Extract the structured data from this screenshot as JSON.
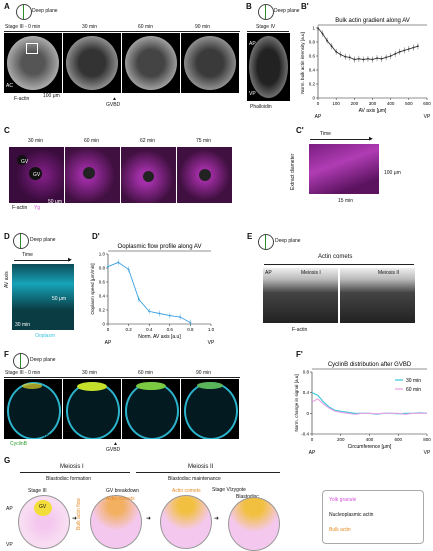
{
  "panels": {
    "A": {
      "label": "A",
      "deep": "Deep plane",
      "header": "Stage III - 0 min",
      "times": [
        "30 min",
        "60 min",
        "90 min"
      ],
      "stain": "F-actin",
      "scale": "100 μm",
      "gvbd": "GVBD",
      "ac": "AC"
    },
    "B": {
      "label": "B",
      "deep": "Deep plane",
      "stage": "Stage IV",
      "ap": "AP",
      "vp": "VP",
      "stain": "Phalloidin"
    },
    "Bp": {
      "label": "B'",
      "title": "Bulk actin gradient along AV",
      "ylabel": "Norm. bulk actin intensity [a.u]",
      "xlabel": "AV axis [μm]",
      "ap": "AP",
      "vp": "VP"
    },
    "C": {
      "label": "C",
      "times": [
        "30 min",
        "60 min",
        "62 min",
        "75 min"
      ],
      "stain1": "F-actin",
      "stain2": "Yg",
      "scale": "50 μm",
      "gv1": "GV",
      "gv2": "GV"
    },
    "Cp": {
      "label": "C'",
      "time": "Time",
      "ylabel": "Extract diameter",
      "scale_y": "100 μm",
      "scale_x": "15 min"
    },
    "D": {
      "label": "D",
      "deep": "Deep plane",
      "time": "Time",
      "axis": "AV axis",
      "stain": "Ooplasm",
      "scale_y": "50 μm",
      "scale_x": "30 min"
    },
    "Dp": {
      "label": "D'",
      "title": "Ooplasmic flow profile along AV",
      "ylabel": "Ooplasm speed [μm/min]",
      "xlabel": "Norm. AV axis [a.u]",
      "ap": "AP",
      "vp": "VP"
    },
    "E": {
      "label": "E",
      "deep": "Deep plane",
      "title": "Actin comets",
      "m1": "Meiosis I",
      "m2": "Meiosis II",
      "ap": "AP",
      "stain": "F-actin"
    },
    "F": {
      "label": "F",
      "deep": "Deep plane",
      "header": "Stage III - 0 min",
      "times": [
        "30 min",
        "60 min",
        "90 min"
      ],
      "stain": "CyclinB",
      "scale": "100 μm",
      "gvbd": "GVBD"
    },
    "Fp": {
      "label": "F'",
      "title": "CyclinB distribution after GVBD",
      "ylabel": "Norm. change in signal [a.u]",
      "xlabel": "Circumference [μm]",
      "ap": "AP",
      "vp": "VP",
      "legend": [
        "30 min",
        "60 min"
      ]
    },
    "G": {
      "label": "G",
      "m1": "Meiosis I",
      "m1sub": "Blastodisc formation",
      "m2": "Meiosis II",
      "m2sub": "Blastodisc maintenance",
      "s1": "Stage III",
      "s2": "GV breakdown",
      "s3": "Stage V/zygote",
      "blast": "Blastodisc",
      "ap": "AP",
      "vp": "VP",
      "gv": "GV",
      "comets1": "Actin comets",
      "comets2": "Actin comets",
      "bulk": "Bulk actin flow",
      "legend": [
        "Yolk granule",
        "Nucleoplasmic actin",
        "Bulk actin"
      ]
    }
  },
  "colors": {
    "cyan": "#39c6dc",
    "magenta": "#d34fd8",
    "orange": "#e58a26",
    "yellow": "#e6d12a",
    "blue_line": "#3aa0e0",
    "pink": "#e7a1e2"
  },
  "chart_data": [
    {
      "type": "line",
      "id": "Bp",
      "title": "Bulk actin gradient along AV",
      "xlabel": "AV axis [μm]",
      "ylabel": "Norm. bulk actin intensity [a.u]",
      "xlim": [
        0,
        600
      ],
      "ylim": [
        0,
        1
      ],
      "xticks": [
        "0",
        "100",
        "200",
        "300",
        "400",
        "500",
        "600"
      ],
      "yticks": [
        "0",
        "0.2",
        "0.4",
        "0.6",
        "0.8",
        "1"
      ],
      "x": [
        0,
        25,
        50,
        75,
        100,
        125,
        150,
        175,
        200,
        225,
        250,
        275,
        300,
        325,
        350,
        375,
        400,
        425,
        450,
        475,
        500,
        525,
        550
      ],
      "values": [
        1.0,
        0.92,
        0.82,
        0.74,
        0.66,
        0.62,
        0.59,
        0.58,
        0.55,
        0.56,
        0.55,
        0.56,
        0.55,
        0.57,
        0.56,
        0.58,
        0.6,
        0.63,
        0.66,
        0.68,
        0.7,
        0.72,
        0.74
      ]
    },
    {
      "type": "line",
      "id": "Dp",
      "title": "Ooplasmic flow profile along AV",
      "xlabel": "Norm. AV axis [a.u]",
      "ylabel": "Ooplasm speed [μm/min]",
      "xlim": [
        0,
        1
      ],
      "ylim": [
        0,
        1.0
      ],
      "xticks": [
        "0",
        "0.2",
        "0.4",
        "0.6",
        "0.8",
        "1.0"
      ],
      "yticks": [
        "0",
        "0.2",
        "0.4",
        "0.6",
        "0.8",
        "1.0"
      ],
      "x": [
        0,
        0.1,
        0.2,
        0.3,
        0.4,
        0.5,
        0.6,
        0.7,
        0.8
      ],
      "values": [
        0.82,
        0.88,
        0.78,
        0.35,
        0.18,
        0.15,
        0.12,
        0.1,
        0.02
      ]
    },
    {
      "type": "line",
      "id": "Fp",
      "title": "CyclinB distribution after GVBD",
      "xlabel": "Circumference [μm]",
      "ylabel": "Norm. change in signal [a.u]",
      "xlim": [
        0,
        800
      ],
      "ylim": [
        -0.4,
        0.8
      ],
      "xticks": [
        "0",
        "200",
        "400",
        "600",
        "800"
      ],
      "yticks": [
        "-0.4",
        "0",
        "0.4",
        "0.8"
      ],
      "series": [
        {
          "name": "30 min",
          "x": [
            0,
            40,
            80,
            120,
            160,
            200,
            250,
            300,
            350,
            400,
            450,
            500,
            550,
            600,
            650,
            700,
            750,
            800
          ],
          "values": [
            0.4,
            0.35,
            0.22,
            0.12,
            0.06,
            0.04,
            0.02,
            0.0,
            0.0,
            0.0,
            -0.02,
            0.0,
            0.0,
            -0.01,
            0.0,
            0.0,
            0.01,
            0.0
          ]
        },
        {
          "name": "60 min",
          "x": [
            0,
            40,
            80,
            120,
            160,
            200,
            250,
            300,
            350,
            400,
            450,
            500,
            550,
            600,
            650,
            700,
            750,
            800
          ],
          "values": [
            0.22,
            0.28,
            0.18,
            0.1,
            0.04,
            0.02,
            0.0,
            -0.02,
            0.0,
            0.0,
            -0.01,
            0.0,
            0.0,
            0.0,
            -0.02,
            0.0,
            0.0,
            0.0
          ]
        }
      ]
    }
  ]
}
